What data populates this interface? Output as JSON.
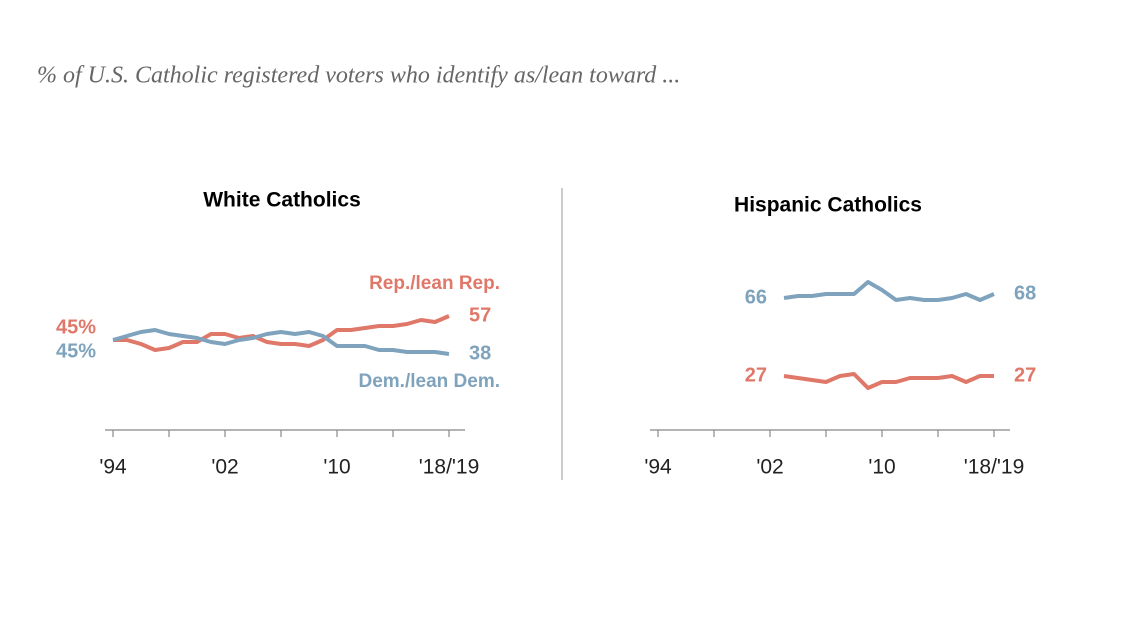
{
  "subtitle": "% of U.S. Catholic registered voters who identify as/lean toward ...",
  "chart_data": [
    {
      "type": "line",
      "title": "White Catholics",
      "x": [
        1994,
        1995,
        1996,
        1997,
        1998,
        1999,
        2000,
        2001,
        2002,
        2003,
        2004,
        2005,
        2006,
        2007,
        2008,
        2009,
        2010,
        2011,
        2012,
        2013,
        2014,
        2015,
        2016,
        2017,
        2018
      ],
      "xlim": [
        1993.5,
        2019.5
      ],
      "xticks": [
        {
          "value": 1994,
          "label": "'94"
        },
        {
          "value": 2002,
          "label": "'02"
        },
        {
          "value": 2010,
          "label": "'10"
        },
        {
          "value": 2018,
          "label": "'18/'19"
        }
      ],
      "minor_xticks": [
        1998,
        2006,
        2014
      ],
      "ylim": [
        0,
        100
      ],
      "series": [
        {
          "name": "Rep./lean Rep.",
          "color": "#e0786a",
          "values": [
            45,
            45,
            43,
            40,
            41,
            44,
            44,
            48,
            48,
            46,
            47,
            44,
            43,
            43,
            42,
            45,
            50,
            50,
            51,
            52,
            52,
            53,
            55,
            54,
            57
          ],
          "value_labels": [
            "45%",
            null,
            null,
            null,
            null,
            null,
            null,
            null,
            null,
            null,
            null,
            null,
            null,
            null,
            null,
            null,
            null,
            null,
            null,
            null,
            null,
            null,
            null,
            null,
            "57"
          ]
        },
        {
          "name": "Dem./lean Dem.",
          "color": "#7fa3bd",
          "values": [
            45,
            47,
            49,
            50,
            48,
            47,
            46,
            44,
            43,
            45,
            46,
            48,
            49,
            48,
            49,
            47,
            42,
            42,
            42,
            40,
            40,
            39,
            39,
            39,
            38
          ],
          "value_labels": [
            "45%",
            null,
            null,
            null,
            null,
            null,
            null,
            null,
            null,
            null,
            null,
            null,
            null,
            null,
            null,
            null,
            null,
            null,
            null,
            null,
            null,
            null,
            null,
            null,
            "38"
          ]
        }
      ]
    },
    {
      "type": "line",
      "title": "Hispanic Catholics",
      "x": [
        2003,
        2004,
        2005,
        2006,
        2007,
        2008,
        2009,
        2010,
        2011,
        2012,
        2013,
        2014,
        2015,
        2016,
        2017,
        2018
      ],
      "xlim": [
        1993.5,
        2019.5
      ],
      "xticks": [
        {
          "value": 1994,
          "label": "'94"
        },
        {
          "value": 2002,
          "label": "'02"
        },
        {
          "value": 2010,
          "label": "'10"
        },
        {
          "value": 2018,
          "label": "'18/'19"
        }
      ],
      "minor_xticks": [
        1998,
        2006,
        2014
      ],
      "ylim": [
        0,
        100
      ],
      "series": [
        {
          "color": "#e0786a",
          "values": [
            27,
            26,
            25,
            24,
            27,
            28,
            21,
            24,
            24,
            26,
            26,
            26,
            27,
            24,
            27,
            27
          ],
          "value_labels": [
            "27",
            null,
            null,
            null,
            null,
            null,
            null,
            null,
            null,
            null,
            null,
            null,
            null,
            null,
            null,
            "27"
          ]
        },
        {
          "color": "#7fa3bd",
          "values": [
            66,
            67,
            67,
            68,
            68,
            68,
            74,
            70,
            65,
            66,
            65,
            65,
            66,
            68,
            65,
            68
          ],
          "value_labels": [
            "66",
            null,
            null,
            null,
            null,
            null,
            null,
            null,
            null,
            null,
            null,
            null,
            null,
            null,
            null,
            "68"
          ]
        }
      ]
    }
  ]
}
